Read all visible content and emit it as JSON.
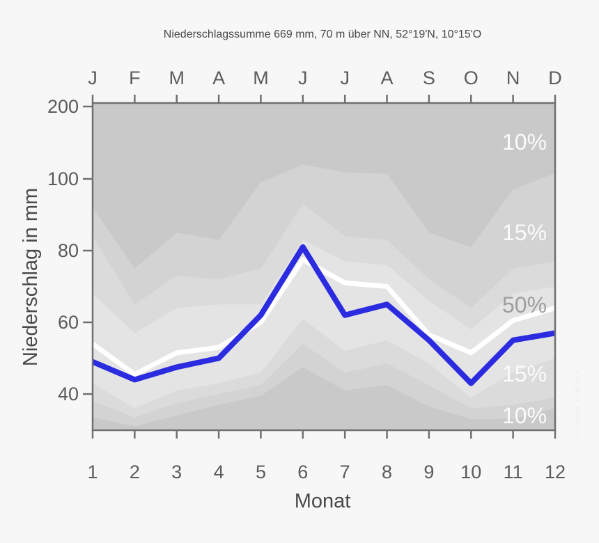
{
  "title": "Niederschlagssumme 669 mm, 70 m über NN, 52°19'N, 10°15'O",
  "axes": {
    "top_labels": [
      "J",
      "F",
      "M",
      "A",
      "M",
      "J",
      "J",
      "A",
      "S",
      "O",
      "N",
      "D"
    ],
    "bottom_labels": [
      "1",
      "2",
      "3",
      "4",
      "5",
      "6",
      "7",
      "8",
      "9",
      "10",
      "11",
      "12"
    ],
    "xlabel": "Monat",
    "ylabel": "Niederschlag in mm",
    "y_ticks": [
      {
        "value": 40,
        "label": "40"
      },
      {
        "value": 60,
        "label": "60"
      },
      {
        "value": 80,
        "label": "80"
      },
      {
        "value": 100,
        "label": "100"
      },
      {
        "value": 200,
        "label": "200"
      }
    ]
  },
  "band_labels": [
    {
      "text": "10%",
      "color": "#fbfbfb"
    },
    {
      "text": "15%",
      "color": "#fbfbfb"
    },
    {
      "text": "50%",
      "color": "#9e9e9e"
    },
    {
      "text": "15%",
      "color": "#fbfbfb"
    },
    {
      "text": "10%",
      "color": "#fbfbfb"
    }
  ],
  "watermark": "© odty-se, LoKLeCh",
  "chart_data": {
    "type": "area",
    "title": "Niederschlagssumme 669 mm, 70 m über NN, 52°19'N, 10°15'O",
    "xlabel": "Monat",
    "ylabel": "Niederschlag in mm",
    "months": [
      1,
      2,
      3,
      4,
      5,
      6,
      7,
      8,
      9,
      10,
      11,
      12
    ],
    "y_axis_note": "broken scale: linear 20 mm steps up to 100, compressed 100-200",
    "y_scale_anchors": [
      [
        40,
        566
      ],
      [
        100,
        257
      ],
      [
        200,
        153
      ]
    ],
    "series": {
      "max": [
        92,
        75,
        85,
        83,
        99,
        120,
        109,
        107,
        85,
        81,
        97,
        108
      ],
      "p90": [
        84,
        65,
        73,
        72,
        75,
        93,
        84,
        83,
        72,
        64,
        75,
        77
      ],
      "p75": [
        68,
        57,
        64,
        65,
        65,
        83,
        77,
        76,
        66,
        58,
        68,
        70
      ],
      "median_white": [
        54,
        45.5,
        51.5,
        53,
        60,
        77.5,
        71,
        70,
        56.5,
        51.5,
        60.5,
        64
      ],
      "blue_line": [
        49,
        44,
        47.5,
        50,
        62,
        81,
        62,
        65,
        55,
        43,
        55,
        57
      ],
      "p25": [
        43,
        36,
        41,
        43,
        46,
        61,
        52,
        55,
        48.5,
        39,
        46,
        50
      ],
      "p10": [
        38,
        33.5,
        37.5,
        40,
        42.5,
        54,
        46,
        48.5,
        42.5,
        36,
        37,
        39
      ],
      "min": [
        33.5,
        31,
        34,
        37,
        39.5,
        47.5,
        41,
        42.5,
        36.5,
        33,
        33,
        36
      ]
    },
    "band_fractions": [
      "10%",
      "15%",
      "50%",
      "15%",
      "10%"
    ],
    "colors": {
      "outside": "#c9c9c9",
      "band10": "#d3d3d3",
      "band15": "#dbdbdb",
      "band50": "#e4e4e4",
      "median_line": "#ffffff",
      "main_line": "#2b2be0",
      "frame": "#707070"
    }
  }
}
